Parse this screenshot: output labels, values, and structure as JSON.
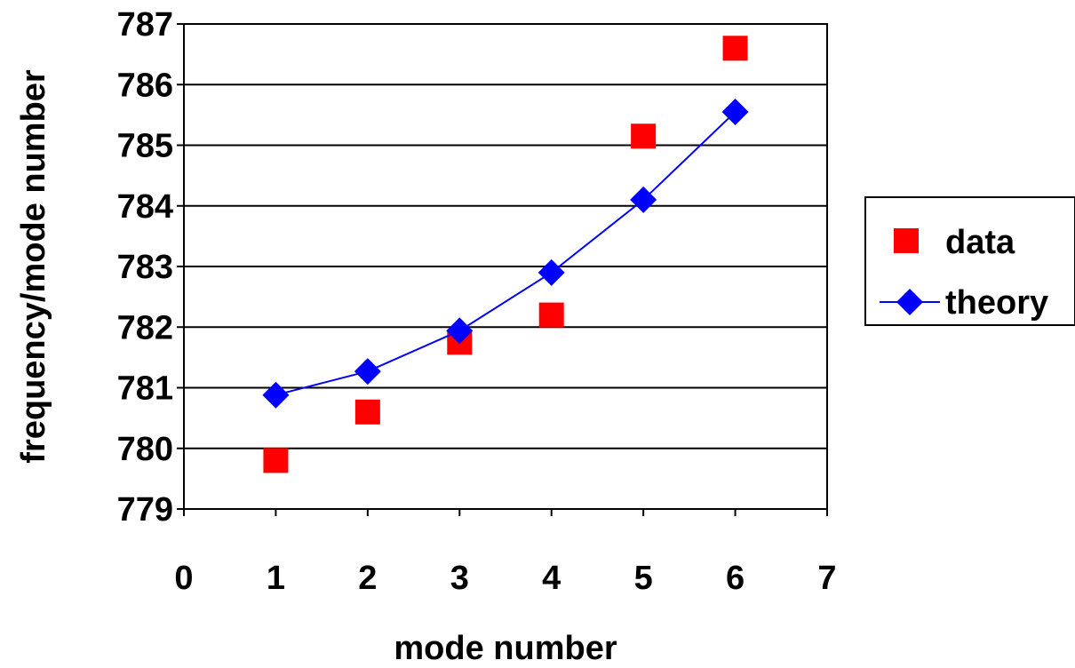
{
  "chart_data": {
    "type": "scatter",
    "xlabel": "mode number",
    "ylabel": "frequency/mode number",
    "xlim": [
      0,
      7
    ],
    "ylim": [
      779,
      787
    ],
    "x_ticks": [
      "0",
      "1",
      "2",
      "3",
      "4",
      "5",
      "6",
      "7"
    ],
    "y_ticks": [
      "779",
      "780",
      "781",
      "782",
      "783",
      "784",
      "785",
      "786",
      "787"
    ],
    "grid": "horizontal",
    "legend_position": "right",
    "series": [
      {
        "name": "data",
        "marker": "square",
        "line": false,
        "color": "#ff0000",
        "x": [
          1,
          2,
          3,
          4,
          5,
          6
        ],
        "y": [
          779.8,
          780.6,
          781.75,
          782.2,
          785.15,
          786.6
        ]
      },
      {
        "name": "theory",
        "marker": "diamond",
        "line": true,
        "color": "#0000ff",
        "x": [
          1,
          2,
          3,
          4,
          5,
          6
        ],
        "y": [
          780.88,
          781.27,
          781.94,
          782.9,
          784.1,
          785.55
        ]
      }
    ]
  }
}
